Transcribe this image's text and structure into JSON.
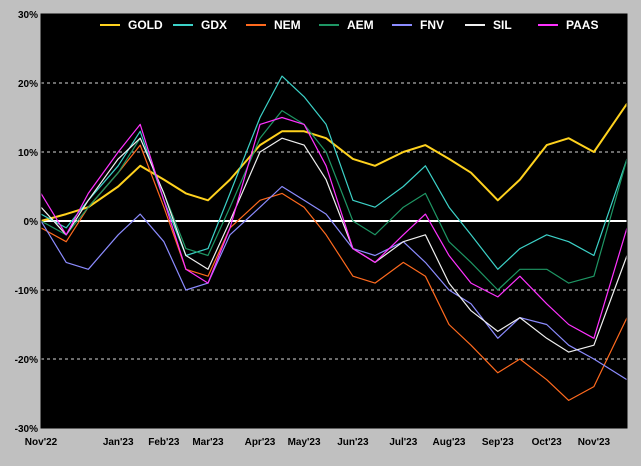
{
  "chart_data": {
    "type": "line",
    "title": "",
    "xlabel": "",
    "ylabel": "",
    "ylim": [
      -30,
      30
    ],
    "yticks": [
      -30,
      -20,
      -10,
      0,
      10,
      20,
      30
    ],
    "ytick_labels": [
      "-30%",
      "-20%",
      "-10%",
      "0%",
      "10%",
      "20%",
      "30%"
    ],
    "x_tick_labels": [
      "Nov'22",
      "Jan'23",
      "Feb'23",
      "Mar'23",
      "Apr'23",
      "May'23",
      "Jun'23",
      "Jul'23",
      "Aug'23",
      "Sep'23",
      "Oct'23",
      "Nov'23"
    ],
    "x_tick_dates": [
      "2022-11-15",
      "2023-01-03",
      "2023-02-01",
      "2023-03-01",
      "2023-04-03",
      "2023-05-01",
      "2023-06-01",
      "2023-07-03",
      "2023-08-01",
      "2023-09-01",
      "2023-10-02",
      "2023-11-01"
    ],
    "x_range": [
      "2022-11-15",
      "2023-11-22"
    ],
    "grid": "horizontal-dashed",
    "legend": "top",
    "background": "#000000",
    "frame_background": "#c0c0c0",
    "x": [
      "2022-11-15",
      "2022-12-01",
      "2022-12-15",
      "2023-01-03",
      "2023-01-17",
      "2023-02-01",
      "2023-02-15",
      "2023-03-01",
      "2023-03-15",
      "2023-04-03",
      "2023-04-17",
      "2023-05-01",
      "2023-05-15",
      "2023-06-01",
      "2023-06-15",
      "2023-07-03",
      "2023-07-17",
      "2023-08-01",
      "2023-08-15",
      "2023-09-01",
      "2023-09-15",
      "2023-10-02",
      "2023-10-16",
      "2023-11-01",
      "2023-11-22"
    ],
    "series": [
      {
        "name": "GOLD",
        "color": "#ffd21e",
        "values": [
          0,
          1,
          2,
          5,
          8,
          6,
          4,
          3,
          6,
          11,
          13,
          13,
          12,
          9,
          8,
          10,
          11,
          9,
          7,
          3,
          6,
          11,
          12,
          10,
          17
        ]
      },
      {
        "name": "GDX",
        "color": "#3cd2c8",
        "values": [
          1,
          -1,
          3,
          8,
          13,
          3,
          -5,
          -4,
          4,
          15,
          21,
          18,
          14,
          3,
          2,
          5,
          8,
          2,
          -2,
          -7,
          -4,
          -2,
          -3,
          -5,
          9
        ]
      },
      {
        "name": "NEM",
        "color": "#ff6a1e",
        "values": [
          -1,
          -3,
          2,
          7,
          11,
          2,
          -7,
          -8,
          -1,
          3,
          4,
          2,
          -2,
          -8,
          -9,
          -6,
          -8,
          -15,
          -18,
          -22,
          -20,
          -23,
          -26,
          -24,
          -14
        ]
      },
      {
        "name": "AEM",
        "color": "#1e9664",
        "values": [
          0,
          -2,
          2,
          7,
          12,
          4,
          -4,
          -5,
          2,
          12,
          16,
          14,
          10,
          0,
          -2,
          2,
          4,
          -3,
          -6,
          -10,
          -7,
          -7,
          -9,
          -8,
          9
        ]
      },
      {
        "name": "FNV",
        "color": "#8c8cff",
        "values": [
          0,
          -6,
          -7,
          -2,
          1,
          -3,
          -10,
          -9,
          -2,
          2,
          5,
          3,
          1,
          -4,
          -5,
          -3,
          -6,
          -10,
          -12,
          -17,
          -14,
          -15,
          -18,
          -20,
          -23
        ]
      },
      {
        "name": "SIL",
        "color": "#f0f0f0",
        "values": [
          2,
          -2,
          3,
          9,
          12,
          4,
          -5,
          -7,
          0,
          10,
          12,
          11,
          6,
          -4,
          -6,
          -3,
          -2,
          -9,
          -13,
          -16,
          -14,
          -17,
          -19,
          -18,
          -5
        ]
      },
      {
        "name": "PAAS",
        "color": "#ff32ff",
        "values": [
          4,
          -2,
          4,
          10,
          14,
          3,
          -7,
          -9,
          -1,
          14,
          15,
          14,
          8,
          -4,
          -6,
          -2,
          1,
          -5,
          -9,
          -11,
          -8,
          -12,
          -15,
          -17,
          -1
        ]
      }
    ]
  }
}
